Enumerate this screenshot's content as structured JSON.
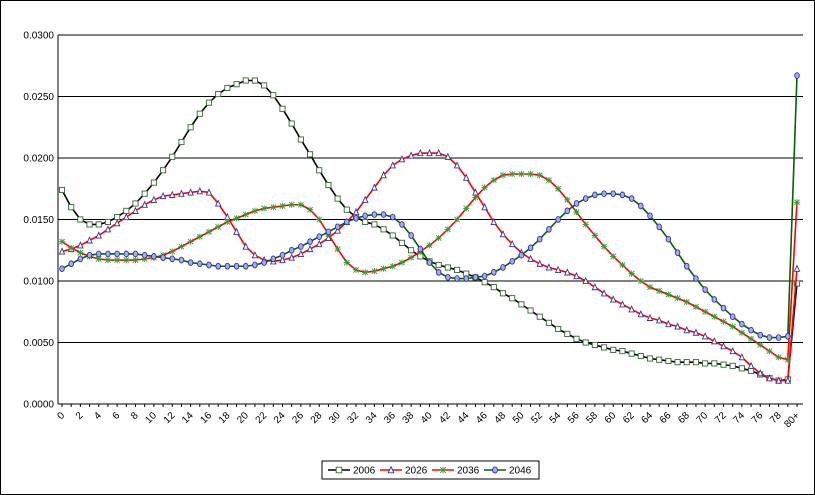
{
  "chart_data": {
    "type": "line",
    "title": "",
    "xlabel": "",
    "ylabel": "",
    "x": [
      "0",
      "1",
      "2",
      "3",
      "4",
      "5",
      "6",
      "7",
      "8",
      "9",
      "10",
      "11",
      "12",
      "13",
      "14",
      "15",
      "16",
      "17",
      "18",
      "19",
      "20",
      "21",
      "22",
      "23",
      "24",
      "25",
      "26",
      "27",
      "28",
      "29",
      "30",
      "31",
      "32",
      "33",
      "34",
      "35",
      "36",
      "37",
      "38",
      "39",
      "40",
      "41",
      "42",
      "43",
      "44",
      "45",
      "46",
      "47",
      "48",
      "49",
      "50",
      "51",
      "52",
      "53",
      "54",
      "55",
      "56",
      "57",
      "58",
      "59",
      "60",
      "61",
      "62",
      "63",
      "64",
      "65",
      "66",
      "67",
      "68",
      "69",
      "70",
      "71",
      "72",
      "73",
      "74",
      "75",
      "76",
      "77",
      "78",
      "79",
      "80+"
    ],
    "x_tick_labels": [
      "0",
      "2",
      "4",
      "6",
      "8",
      "10",
      "12",
      "14",
      "16",
      "18",
      "20",
      "22",
      "24",
      "26",
      "28",
      "30",
      "32",
      "34",
      "36",
      "38",
      "40",
      "42",
      "44",
      "46",
      "48",
      "50",
      "52",
      "54",
      "56",
      "58",
      "60",
      "62",
      "64",
      "66",
      "68",
      "70",
      "72",
      "74",
      "76",
      "78",
      "80+"
    ],
    "y_tick_labels": [
      "0.0000",
      "0.0050",
      "0.0100",
      "0.0150",
      "0.0200",
      "0.0250",
      "0.0300"
    ],
    "ylim": [
      0,
      0.03
    ],
    "grid": true,
    "legend_position": "bottom",
    "series": [
      {
        "name": "2006",
        "color": "#000000",
        "marker": "square",
        "marker_fill": "#ffffff",
        "marker_stroke": "#336633",
        "values": [
          0.0174,
          0.016,
          0.015,
          0.0146,
          0.0146,
          0.0148,
          0.0152,
          0.0157,
          0.0163,
          0.0171,
          0.018,
          0.019,
          0.0201,
          0.0213,
          0.0225,
          0.0236,
          0.0245,
          0.0252,
          0.0257,
          0.026,
          0.0263,
          0.0263,
          0.0259,
          0.0251,
          0.024,
          0.0228,
          0.0215,
          0.0203,
          0.019,
          0.0178,
          0.0167,
          0.0158,
          0.0152,
          0.0148,
          0.0146,
          0.0142,
          0.0137,
          0.0131,
          0.0125,
          0.012,
          0.0116,
          0.0113,
          0.0111,
          0.0109,
          0.0106,
          0.0103,
          0.0099,
          0.0095,
          0.009,
          0.0086,
          0.0081,
          0.0076,
          0.0071,
          0.0066,
          0.0061,
          0.0057,
          0.0053,
          0.005,
          0.0048,
          0.0046,
          0.0044,
          0.0043,
          0.0041,
          0.0039,
          0.0037,
          0.0036,
          0.0035,
          0.0034,
          0.0034,
          0.0034,
          0.0033,
          0.0033,
          0.0032,
          0.0031,
          0.0029,
          0.0027,
          0.0024,
          0.0021,
          0.0019,
          0.002,
          0.0098
        ]
      },
      {
        "name": "2026",
        "color": "#ff0000",
        "marker": "triangle",
        "marker_fill": "#ffffff",
        "marker_stroke": "#3333aa",
        "values": [
          0.0124,
          0.0126,
          0.0129,
          0.0133,
          0.0137,
          0.0142,
          0.0147,
          0.0152,
          0.0157,
          0.0162,
          0.0166,
          0.0169,
          0.017,
          0.0171,
          0.0172,
          0.0173,
          0.0172,
          0.0163,
          0.0152,
          0.014,
          0.0128,
          0.0121,
          0.0117,
          0.0116,
          0.0117,
          0.0119,
          0.0122,
          0.0126,
          0.013,
          0.0135,
          0.0141,
          0.0148,
          0.0156,
          0.0166,
          0.0176,
          0.0186,
          0.0194,
          0.0199,
          0.0202,
          0.0204,
          0.0204,
          0.0204,
          0.0201,
          0.0194,
          0.0184,
          0.0172,
          0.016,
          0.0148,
          0.0138,
          0.013,
          0.0123,
          0.0118,
          0.0114,
          0.0111,
          0.0109,
          0.0107,
          0.0104,
          0.01,
          0.0095,
          0.009,
          0.0085,
          0.0081,
          0.0077,
          0.0073,
          0.007,
          0.0068,
          0.0065,
          0.0063,
          0.006,
          0.0058,
          0.0055,
          0.0051,
          0.0047,
          0.0043,
          0.0038,
          0.0031,
          0.0025,
          0.0021,
          0.0019,
          0.0019,
          0.011
        ]
      },
      {
        "name": "2036",
        "color": "#ff0000",
        "marker": "star",
        "marker_fill": "none",
        "marker_stroke": "#339933",
        "values": [
          0.0132,
          0.0127,
          0.0123,
          0.012,
          0.0118,
          0.0117,
          0.0117,
          0.0117,
          0.0117,
          0.0118,
          0.0119,
          0.0121,
          0.0124,
          0.0128,
          0.0132,
          0.0136,
          0.014,
          0.0144,
          0.0148,
          0.0151,
          0.0154,
          0.0157,
          0.0159,
          0.016,
          0.0161,
          0.0162,
          0.0162,
          0.0158,
          0.015,
          0.0138,
          0.0126,
          0.0115,
          0.0109,
          0.0107,
          0.0108,
          0.011,
          0.0112,
          0.0115,
          0.0119,
          0.0124,
          0.0129,
          0.0135,
          0.0142,
          0.015,
          0.0159,
          0.0168,
          0.0176,
          0.0182,
          0.0186,
          0.0187,
          0.0187,
          0.0187,
          0.0186,
          0.0182,
          0.0175,
          0.0166,
          0.0156,
          0.0146,
          0.0137,
          0.0128,
          0.012,
          0.0113,
          0.0106,
          0.01,
          0.0095,
          0.0092,
          0.0089,
          0.0086,
          0.0083,
          0.0079,
          0.0075,
          0.0071,
          0.0067,
          0.0063,
          0.0058,
          0.0053,
          0.0048,
          0.0043,
          0.0038,
          0.0036,
          0.0164
        ]
      },
      {
        "name": "2046",
        "color": "#006600",
        "marker": "circle",
        "marker_fill": "#aaaaee",
        "marker_stroke": "#3333aa",
        "values": [
          0.011,
          0.0114,
          0.0118,
          0.0121,
          0.0122,
          0.0122,
          0.0122,
          0.0122,
          0.0122,
          0.0121,
          0.012,
          0.0119,
          0.0118,
          0.0117,
          0.0115,
          0.0114,
          0.0113,
          0.0112,
          0.0112,
          0.0112,
          0.0112,
          0.0113,
          0.0115,
          0.0118,
          0.0121,
          0.0125,
          0.0128,
          0.0132,
          0.0136,
          0.014,
          0.0144,
          0.0148,
          0.0151,
          0.0153,
          0.0154,
          0.0154,
          0.0152,
          0.0146,
          0.0137,
          0.0126,
          0.0115,
          0.0107,
          0.0103,
          0.0102,
          0.0102,
          0.0103,
          0.0104,
          0.0107,
          0.0111,
          0.0116,
          0.0121,
          0.0127,
          0.0134,
          0.0142,
          0.015,
          0.0157,
          0.0163,
          0.0167,
          0.017,
          0.0171,
          0.0171,
          0.017,
          0.0167,
          0.0161,
          0.0153,
          0.0144,
          0.0134,
          0.0123,
          0.0112,
          0.0102,
          0.0093,
          0.0085,
          0.0078,
          0.0071,
          0.0065,
          0.006,
          0.0056,
          0.0054,
          0.0054,
          0.0055,
          0.0267
        ]
      }
    ]
  }
}
